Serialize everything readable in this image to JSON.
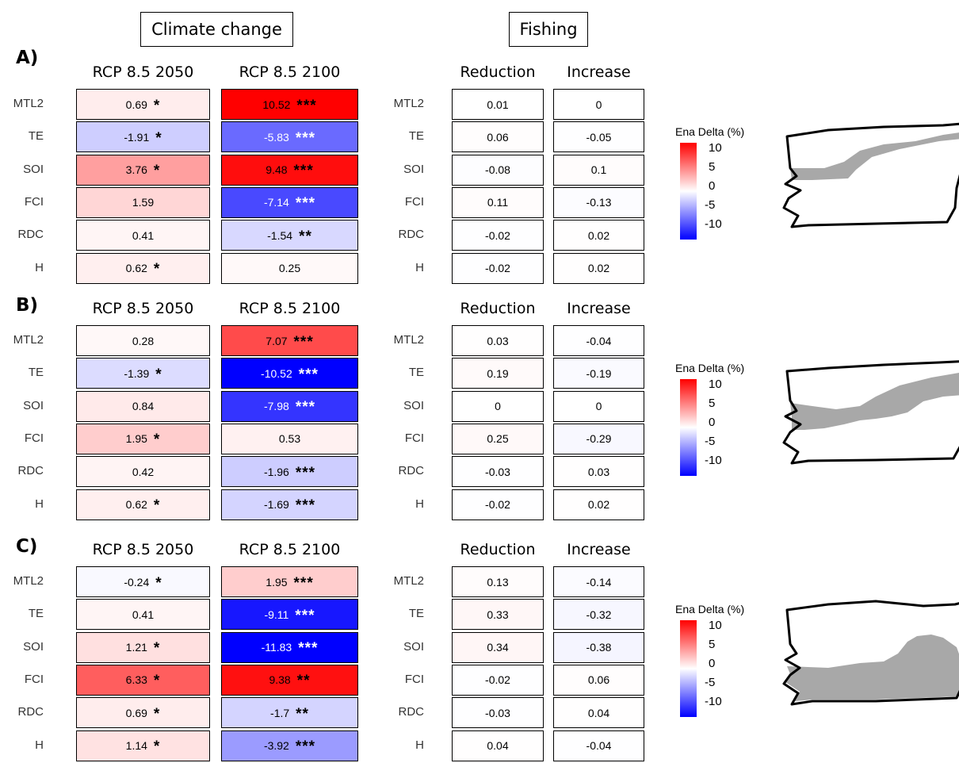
{
  "headers": {
    "climate": "Climate change",
    "fishing": "Fishing"
  },
  "columns": [
    "RCP 8.5 2050",
    "RCP 8.5 2100",
    "Reduction",
    "Increase"
  ],
  "rows": [
    "MTL2",
    "TE",
    "SOI",
    "FCI",
    "RDC",
    "H"
  ],
  "legend": {
    "title": "Ena Delta (%)",
    "ticks": [
      "10",
      "5",
      "0",
      "-5",
      "-10"
    ],
    "range": [
      -10,
      10
    ],
    "colors": {
      "high": "#ff0000",
      "mid": "#ffffff",
      "low": "#0000ff"
    }
  },
  "chart_data": {
    "type": "heatmap",
    "panels": [
      {
        "label": "A)",
        "values": [
          [
            0.69,
            10.52,
            0.01,
            0
          ],
          [
            -1.91,
            -5.83,
            0.06,
            -0.05
          ],
          [
            3.76,
            9.48,
            -0.08,
            0.1
          ],
          [
            1.59,
            -7.14,
            0.11,
            -0.13
          ],
          [
            0.41,
            -1.54,
            -0.02,
            0.02
          ],
          [
            0.62,
            0.25,
            -0.02,
            0.02
          ]
        ],
        "texts": [
          [
            "0.69",
            "10.52",
            "0.01",
            "0"
          ],
          [
            "-1.91",
            "-5.83",
            "0.06",
            "-0.05"
          ],
          [
            "3.76",
            "9.48",
            "-0.08",
            "0.1"
          ],
          [
            "1.59",
            "-7.14",
            "0.11",
            "-0.13"
          ],
          [
            "0.41",
            "-1.54",
            "-0.02",
            "0.02"
          ],
          [
            "0.62",
            "0.25",
            "-0.02",
            "0.02"
          ]
        ],
        "sig": [
          [
            "*",
            "***",
            "",
            ""
          ],
          [
            "*",
            "***",
            "",
            ""
          ],
          [
            "*",
            "***",
            "",
            ""
          ],
          [
            "",
            "***",
            "",
            ""
          ],
          [
            "",
            "**",
            "",
            ""
          ],
          [
            "*",
            "",
            "",
            ""
          ]
        ]
      },
      {
        "label": "B)",
        "values": [
          [
            0.28,
            7.07,
            0.03,
            -0.04
          ],
          [
            -1.39,
            -10.52,
            0.19,
            -0.19
          ],
          [
            0.84,
            -7.98,
            0,
            0
          ],
          [
            1.95,
            0.53,
            0.25,
            -0.29
          ],
          [
            0.42,
            -1.96,
            -0.03,
            0.03
          ],
          [
            0.62,
            -1.69,
            -0.02,
            0.02
          ]
        ],
        "texts": [
          [
            "0.28",
            "7.07",
            "0.03",
            "-0.04"
          ],
          [
            "-1.39",
            "-10.52",
            "0.19",
            "-0.19"
          ],
          [
            "0.84",
            "-7.98",
            "0",
            "0"
          ],
          [
            "1.95",
            "0.53",
            "0.25",
            "-0.29"
          ],
          [
            "0.42",
            "-1.96",
            "-0.03",
            "0.03"
          ],
          [
            "0.62",
            "-1.69",
            "-0.02",
            "0.02"
          ]
        ],
        "sig": [
          [
            "",
            "***",
            "",
            ""
          ],
          [
            "*",
            "***",
            "",
            ""
          ],
          [
            "",
            "***",
            "",
            ""
          ],
          [
            "*",
            "",
            "",
            ""
          ],
          [
            "",
            "***",
            "",
            ""
          ],
          [
            "*",
            "***",
            "",
            ""
          ]
        ]
      },
      {
        "label": "C)",
        "values": [
          [
            -0.24,
            1.95,
            0.13,
            -0.14
          ],
          [
            0.41,
            -9.11,
            0.33,
            -0.32
          ],
          [
            1.21,
            -11.83,
            0.34,
            -0.38
          ],
          [
            6.33,
            9.38,
            -0.02,
            0.06
          ],
          [
            0.69,
            -1.7,
            -0.03,
            0.04
          ],
          [
            1.14,
            -3.92,
            0.04,
            -0.04
          ]
        ],
        "texts": [
          [
            "-0.24",
            "1.95",
            "0.13",
            "-0.14"
          ],
          [
            "0.41",
            "-9.11",
            "0.33",
            "-0.32"
          ],
          [
            "1.21",
            "-11.83",
            "0.34",
            "-0.38"
          ],
          [
            "6.33",
            "9.38",
            "-0.02",
            "0.06"
          ],
          [
            "0.69",
            "-1.7",
            "-0.03",
            "0.04"
          ],
          [
            "1.14",
            "-3.92",
            "0.04",
            "-0.04"
          ]
        ],
        "sig": [
          [
            "*",
            "***",
            "",
            ""
          ],
          [
            "",
            "***",
            "",
            ""
          ],
          [
            "*",
            "***",
            "",
            ""
          ],
          [
            "*",
            "**",
            "",
            ""
          ],
          [
            "*",
            "**",
            "",
            ""
          ],
          [
            "*",
            "***",
            "",
            ""
          ]
        ]
      }
    ]
  }
}
